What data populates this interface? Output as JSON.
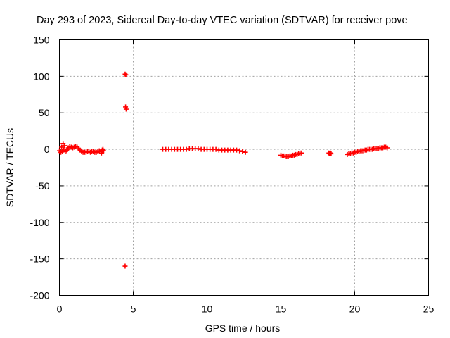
{
  "chart_data": {
    "type": "scatter",
    "title": "Day 293 of 2023, Sidereal Day-to-day VTEC variation (SDTVAR) for receiver pove",
    "xlabel": "GPS time / hours",
    "ylabel": "SDTVAR / TECUs",
    "xlim": [
      0,
      25
    ],
    "ylim": [
      -200,
      150
    ],
    "xticks": [
      0,
      5,
      10,
      15,
      20,
      25
    ],
    "xtick_labels": [
      "0",
      "5",
      "10",
      "15",
      "20",
      "25"
    ],
    "yticks": [
      150,
      100,
      50,
      0,
      -50,
      -100,
      -150,
      -200
    ],
    "ytick_labels": [
      "150",
      "100",
      "50",
      "0",
      "-50",
      "-100",
      "-150",
      "-200"
    ],
    "grid": true,
    "marker": "plus",
    "color": "#ff0000",
    "series": [
      {
        "name": "SDTVAR",
        "points": [
          [
            0.0,
            -2
          ],
          [
            0.1,
            -4
          ],
          [
            0.15,
            3
          ],
          [
            0.2,
            -3
          ],
          [
            0.25,
            8
          ],
          [
            0.3,
            -1
          ],
          [
            0.35,
            5
          ],
          [
            0.4,
            -3
          ],
          [
            0.5,
            -2
          ],
          [
            0.55,
            0
          ],
          [
            0.6,
            2
          ],
          [
            0.7,
            4
          ],
          [
            0.8,
            3
          ],
          [
            0.9,
            2
          ],
          [
            1.0,
            3
          ],
          [
            1.1,
            4
          ],
          [
            1.2,
            3
          ],
          [
            1.3,
            1
          ],
          [
            1.4,
            -1
          ],
          [
            1.5,
            -3
          ],
          [
            1.6,
            -4
          ],
          [
            1.7,
            -4
          ],
          [
            1.8,
            -4
          ],
          [
            1.9,
            -3
          ],
          [
            2.0,
            -3
          ],
          [
            2.1,
            -4
          ],
          [
            2.2,
            -3
          ],
          [
            2.3,
            -3
          ],
          [
            2.4,
            -4
          ],
          [
            2.5,
            -4
          ],
          [
            2.6,
            -3
          ],
          [
            2.7,
            -2
          ],
          [
            2.8,
            -3
          ],
          [
            2.85,
            -5
          ],
          [
            2.9,
            -1
          ],
          [
            2.95,
            0
          ],
          [
            3.0,
            -2
          ],
          [
            4.45,
            103
          ],
          [
            4.5,
            102
          ],
          [
            4.48,
            58
          ],
          [
            4.52,
            55
          ],
          [
            4.45,
            -160
          ],
          [
            7.0,
            0
          ],
          [
            7.2,
            0
          ],
          [
            7.4,
            0
          ],
          [
            7.6,
            0
          ],
          [
            7.8,
            0
          ],
          [
            8.0,
            0
          ],
          [
            8.2,
            0
          ],
          [
            8.4,
            0
          ],
          [
            8.6,
            0
          ],
          [
            8.8,
            1
          ],
          [
            9.0,
            1
          ],
          [
            9.2,
            1
          ],
          [
            9.4,
            1
          ],
          [
            9.6,
            0
          ],
          [
            9.8,
            0
          ],
          [
            10.0,
            0
          ],
          [
            10.2,
            0
          ],
          [
            10.4,
            0
          ],
          [
            10.6,
            0
          ],
          [
            10.8,
            -1
          ],
          [
            11.0,
            -1
          ],
          [
            11.2,
            -1
          ],
          [
            11.4,
            -1
          ],
          [
            11.6,
            -1
          ],
          [
            11.8,
            -1
          ],
          [
            12.0,
            -1
          ],
          [
            12.2,
            -2
          ],
          [
            12.4,
            -3
          ],
          [
            12.6,
            -4
          ],
          [
            15.0,
            -8
          ],
          [
            15.1,
            -9
          ],
          [
            15.2,
            -9
          ],
          [
            15.3,
            -10
          ],
          [
            15.4,
            -10
          ],
          [
            15.5,
            -10
          ],
          [
            15.6,
            -9
          ],
          [
            15.7,
            -9
          ],
          [
            15.8,
            -8
          ],
          [
            15.9,
            -8
          ],
          [
            16.0,
            -7
          ],
          [
            16.1,
            -7
          ],
          [
            16.2,
            -6
          ],
          [
            16.3,
            -5
          ],
          [
            16.4,
            -5
          ],
          [
            18.25,
            -5
          ],
          [
            18.3,
            -6
          ],
          [
            18.35,
            -5
          ],
          [
            18.4,
            -6
          ],
          [
            19.5,
            -7
          ],
          [
            19.6,
            -6
          ],
          [
            19.7,
            -6
          ],
          [
            19.8,
            -5
          ],
          [
            19.9,
            -5
          ],
          [
            20.0,
            -4
          ],
          [
            20.1,
            -4
          ],
          [
            20.2,
            -3
          ],
          [
            20.3,
            -3
          ],
          [
            20.4,
            -2
          ],
          [
            20.5,
            -2
          ],
          [
            20.6,
            -2
          ],
          [
            20.7,
            -1
          ],
          [
            20.8,
            -1
          ],
          [
            20.9,
            0
          ],
          [
            21.0,
            0
          ],
          [
            21.1,
            0
          ],
          [
            21.2,
            0
          ],
          [
            21.3,
            1
          ],
          [
            21.4,
            1
          ],
          [
            21.5,
            1
          ],
          [
            21.6,
            1
          ],
          [
            21.7,
            2
          ],
          [
            21.8,
            2
          ],
          [
            21.9,
            2
          ],
          [
            22.0,
            3
          ],
          [
            22.1,
            3
          ],
          [
            22.2,
            2
          ]
        ]
      }
    ]
  }
}
